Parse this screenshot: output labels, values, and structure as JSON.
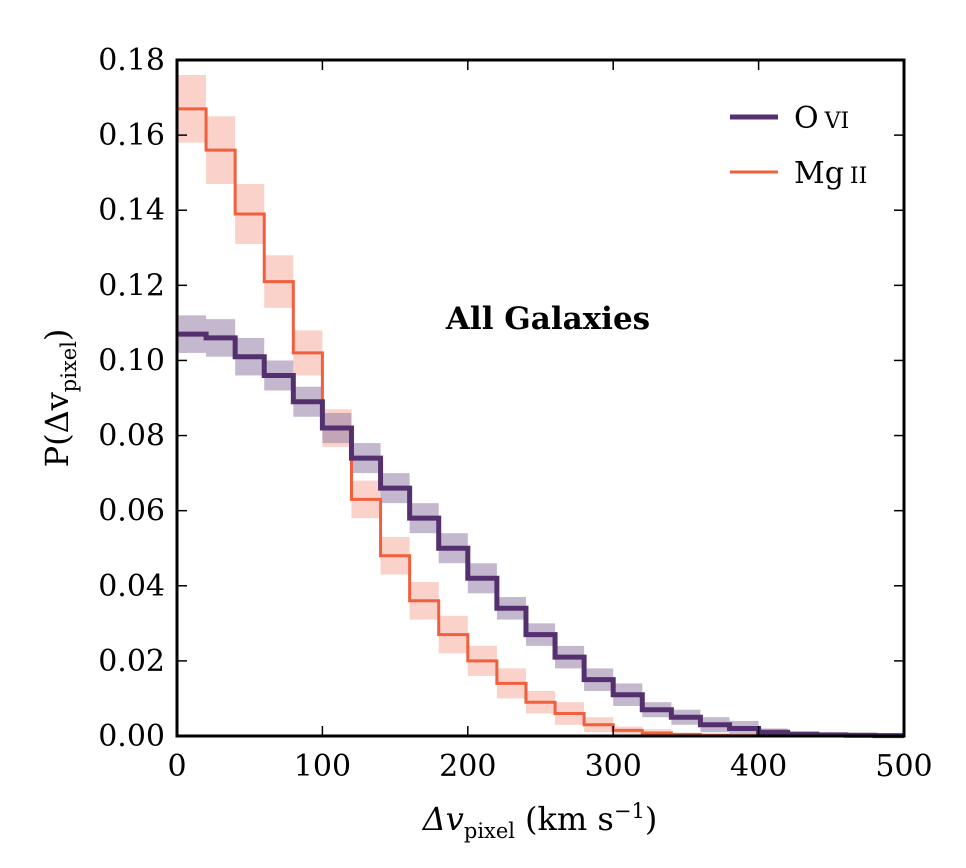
{
  "chart_data": {
    "type": "line",
    "subtype": "step",
    "annotation": "All Galaxies",
    "xlabel": {
      "symbol": "Δv",
      "subscript": "pixel",
      "unit_prefix": "(km s",
      "unit_exp": "−1",
      "unit_suffix": ")"
    },
    "ylabel": {
      "prefix": "P(Δv",
      "subscript": "pixel",
      "suffix": ")"
    },
    "xlim": [
      0,
      500
    ],
    "ylim": [
      0,
      0.18
    ],
    "xticks": [
      "0",
      "100",
      "200",
      "300",
      "400",
      "500"
    ],
    "yticks": [
      "0.00",
      "0.02",
      "0.04",
      "0.06",
      "0.08",
      "0.10",
      "0.12",
      "0.14",
      "0.16",
      "0.18"
    ],
    "grid": false,
    "legend_position": "top-right",
    "bin_edges": [
      0,
      20,
      40,
      60,
      80,
      100,
      120,
      140,
      160,
      180,
      200,
      220,
      240,
      260,
      280,
      300,
      320,
      340,
      360,
      380,
      400,
      420,
      440,
      460,
      480,
      500
    ],
    "series": [
      {
        "name_main": "O",
        "name_ion": "VI",
        "color": "#54306e",
        "band_color": "#9d88ad",
        "values": [
          0.107,
          0.106,
          0.101,
          0.096,
          0.089,
          0.082,
          0.074,
          0.066,
          0.058,
          0.05,
          0.042,
          0.034,
          0.027,
          0.021,
          0.015,
          0.011,
          0.007,
          0.005,
          0.003,
          0.002,
          0.001,
          0.0005,
          0.0003,
          0.0002,
          0.0001
        ],
        "err": [
          0.005,
          0.005,
          0.005,
          0.004,
          0.004,
          0.004,
          0.004,
          0.004,
          0.004,
          0.004,
          0.004,
          0.003,
          0.003,
          0.003,
          0.003,
          0.003,
          0.002,
          0.002,
          0.002,
          0.002,
          0.001,
          0.0005,
          0.0005,
          0.0003,
          0.0002
        ]
      },
      {
        "name_main": "Mg",
        "name_ion": "II",
        "color": "#f05f3e",
        "band_color": "#f7b4a5",
        "values": [
          0.167,
          0.156,
          0.139,
          0.121,
          0.102,
          0.082,
          0.063,
          0.048,
          0.036,
          0.027,
          0.02,
          0.014,
          0.009,
          0.006,
          0.003,
          0.0015,
          0.0008,
          0.0004,
          0.0002,
          0.0001,
          0,
          0,
          0,
          0,
          0
        ],
        "err": [
          0.009,
          0.009,
          0.008,
          0.007,
          0.006,
          0.005,
          0.005,
          0.005,
          0.005,
          0.005,
          0.004,
          0.004,
          0.003,
          0.003,
          0.002,
          0.001,
          0.001,
          0.0005,
          0.0003,
          0.0002,
          0,
          0,
          0,
          0,
          0
        ]
      }
    ]
  }
}
